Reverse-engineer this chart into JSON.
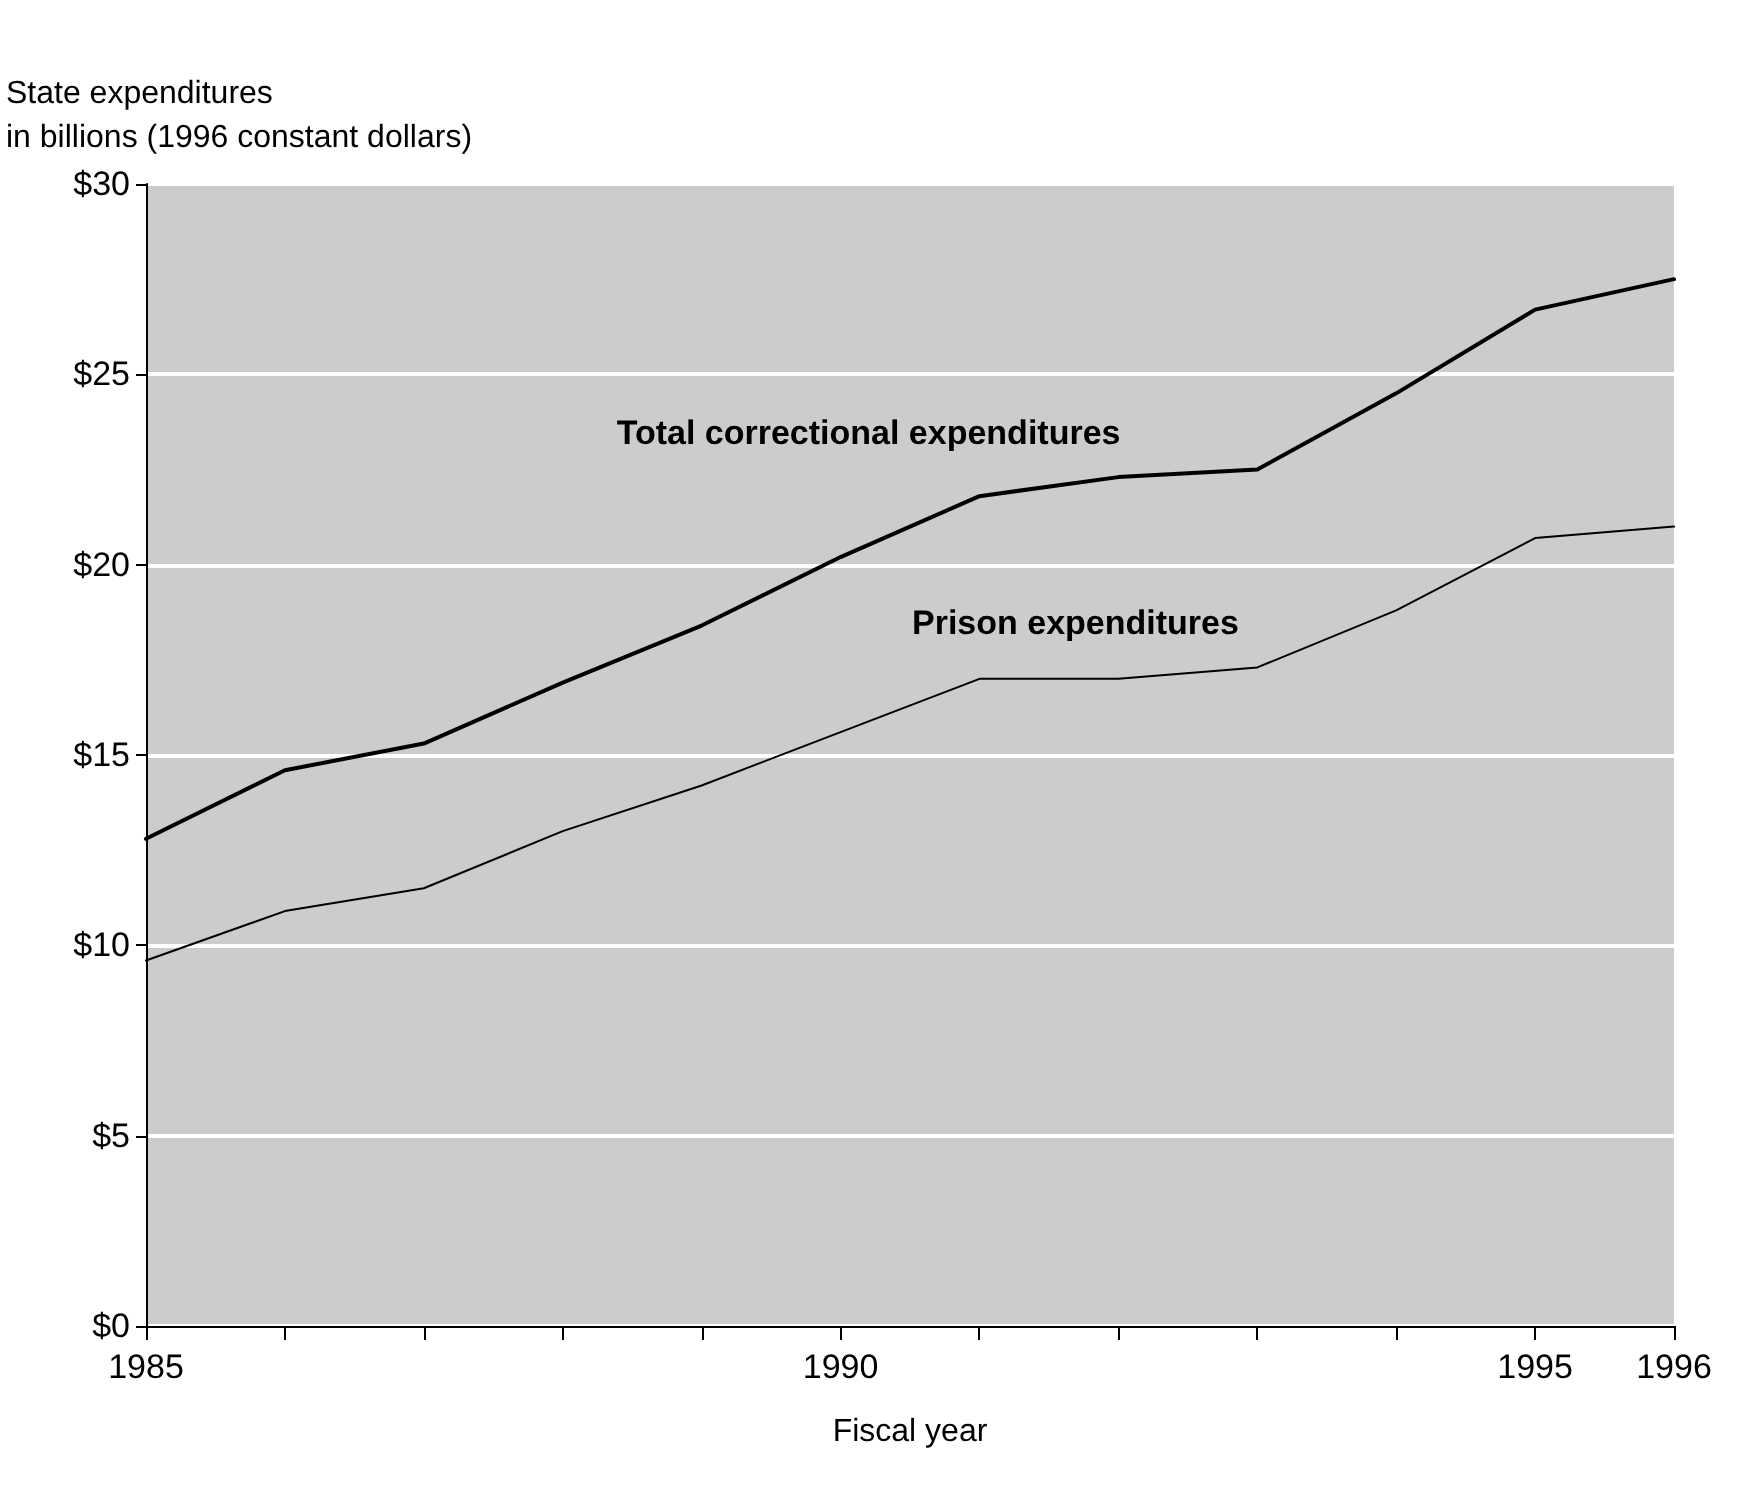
{
  "chart_data": {
    "type": "line",
    "ylabel": "State expenditures\nin billions (1996 constant dollars)",
    "xlabel": "Fiscal year",
    "x": [
      1985,
      1986,
      1987,
      1988,
      1989,
      1990,
      1991,
      1992,
      1993,
      1994,
      1995,
      1996
    ],
    "series": [
      {
        "name": "Total correctional expenditures",
        "color": "#000000",
        "values": [
          12.8,
          14.6,
          15.3,
          16.9,
          18.4,
          20.2,
          21.8,
          22.3,
          22.5,
          24.5,
          26.7,
          27.5
        ]
      },
      {
        "name": "Prison expenditures",
        "color": "#000000",
        "values": [
          9.6,
          10.9,
          11.5,
          13.0,
          14.2,
          15.6,
          17.0,
          17.0,
          17.3,
          18.8,
          20.7,
          21.0
        ]
      }
    ],
    "xlim": [
      1985,
      1996
    ],
    "xticks": [
      1985,
      {
        "value": 1986,
        "label": null
      },
      {
        "value": 1987,
        "label": null
      },
      {
        "value": 1988,
        "label": null
      },
      {
        "value": 1989,
        "label": null
      },
      1990,
      {
        "value": 1991,
        "label": null
      },
      {
        "value": 1992,
        "label": null
      },
      {
        "value": 1993,
        "label": null
      },
      {
        "value": 1994,
        "label": null
      },
      1995,
      1996
    ],
    "ylim": [
      0,
      30
    ],
    "yticks": [
      {
        "value": 0,
        "label": "$0"
      },
      {
        "value": 5,
        "label": "$5"
      },
      {
        "value": 10,
        "label": "$10"
      },
      {
        "value": 15,
        "label": "$15"
      },
      {
        "value": 20,
        "label": "$20"
      },
      {
        "value": 25,
        "label": "$25"
      },
      {
        "value": 30,
        "label": "$30"
      }
    ],
    "grid": "y",
    "marker": "none",
    "line_style": "solid"
  }
}
